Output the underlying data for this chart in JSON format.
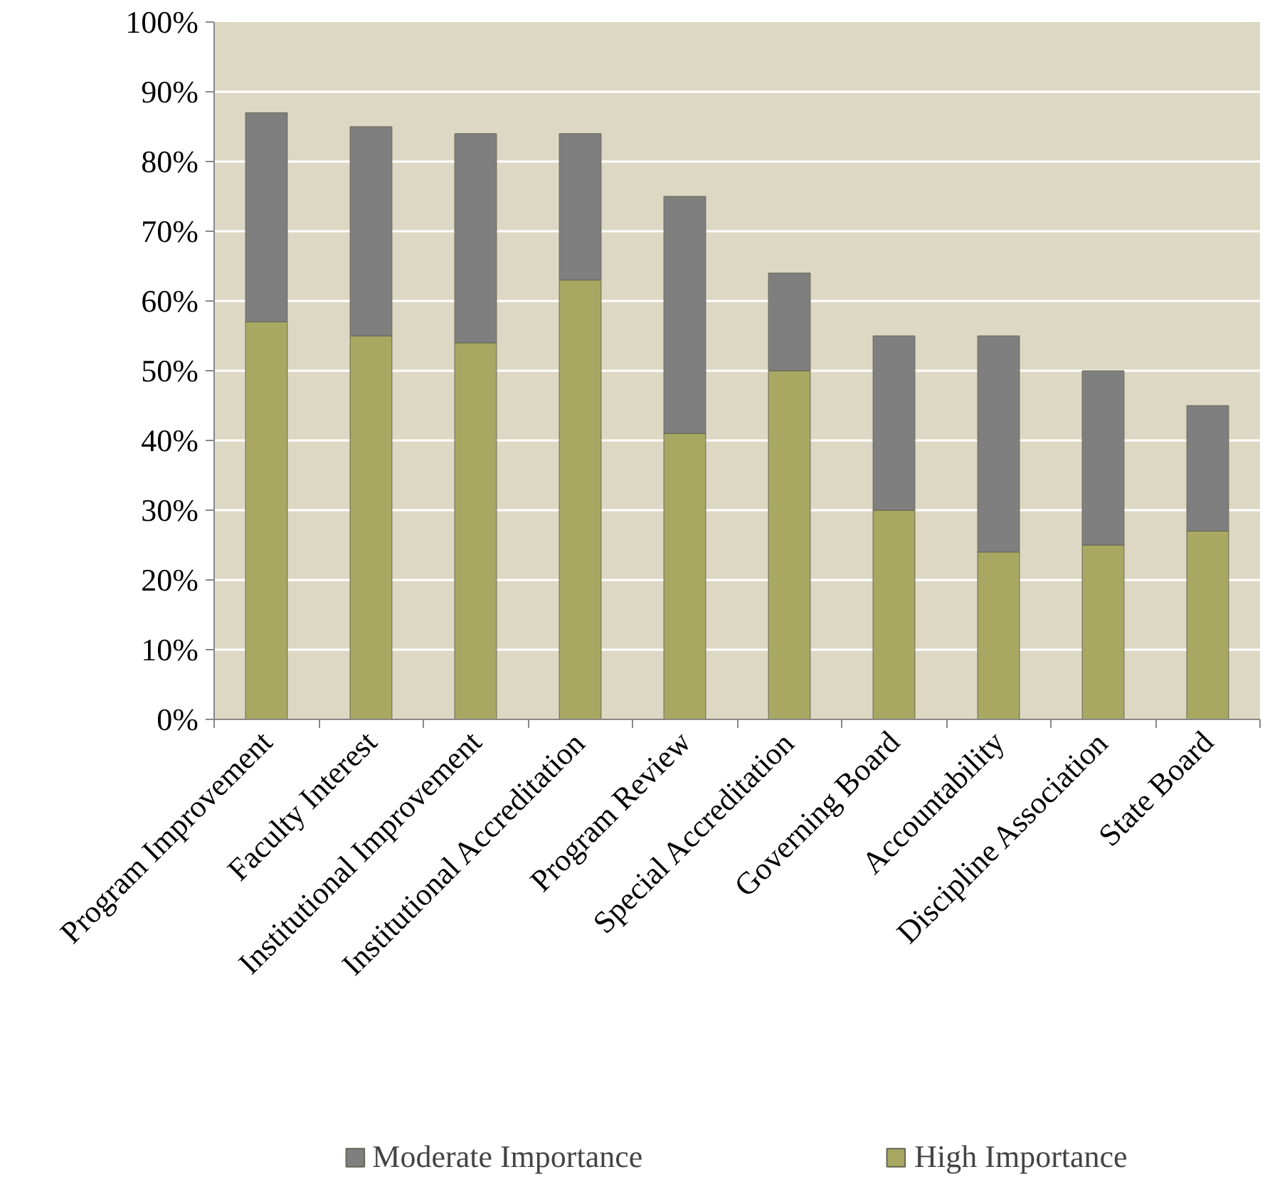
{
  "chart_data": {
    "type": "bar",
    "stacked": true,
    "categories": [
      "Program Improvement",
      "Faculty Interest",
      "Institutional Improvement",
      "Institutional Accreditation",
      "Program Review",
      "Special Accreditation",
      "Governing Board",
      "Accountability",
      "Discipline Association",
      "State Board"
    ],
    "series": [
      {
        "name": "High Importance",
        "color": "#a9a862",
        "values": [
          57,
          55,
          54,
          63,
          41,
          50,
          30,
          24,
          25,
          27
        ]
      },
      {
        "name": "Moderate Importance",
        "color": "#7f7f7f",
        "values": [
          30,
          30,
          30,
          21,
          34,
          14,
          25,
          31,
          25,
          18
        ]
      }
    ],
    "ylim": [
      0,
      100
    ],
    "yticks": [
      {
        "value": 0,
        "label": "0%"
      },
      {
        "value": 10,
        "label": "10%"
      },
      {
        "value": 20,
        "label": "20%"
      },
      {
        "value": 30,
        "label": "30%"
      },
      {
        "value": 40,
        "label": "40%"
      },
      {
        "value": 50,
        "label": "50%"
      },
      {
        "value": 60,
        "label": "60%"
      },
      {
        "value": 70,
        "label": "70%"
      },
      {
        "value": 80,
        "label": "80%"
      },
      {
        "value": 90,
        "label": "90%"
      },
      {
        "value": 100,
        "label": "100%"
      }
    ],
    "grid": "y",
    "legend": "bottom"
  }
}
